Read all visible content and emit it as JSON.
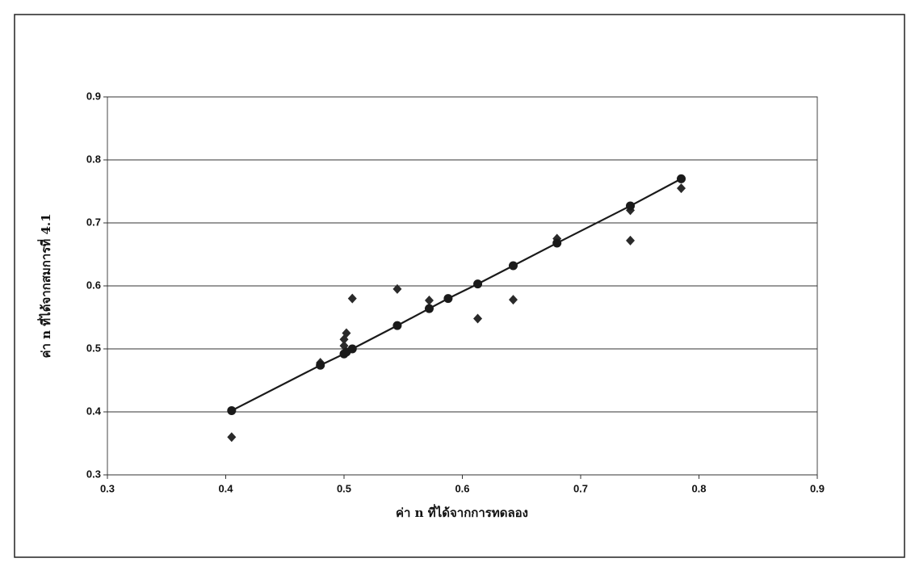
{
  "chart_data": {
    "type": "scatter",
    "x_label": "ค่า n ที่ได้จากการทดลอง",
    "y_label": "ค่า n ที่ได้จากสมการที่ 4.1",
    "xlim": [
      0.3,
      0.9
    ],
    "ylim": [
      0.3,
      0.9
    ],
    "xticks": [
      0.3,
      0.4,
      0.5,
      0.6,
      0.7,
      0.8,
      0.9
    ],
    "yticks": [
      0.3,
      0.4,
      0.5,
      0.6,
      0.7,
      0.8,
      0.9
    ],
    "grid": true,
    "series": [
      {
        "marker": "diamond",
        "color": "#2a2a2a",
        "line": false,
        "x": [
          0.405,
          0.48,
          0.5,
          0.5,
          0.502,
          0.507,
          0.545,
          0.572,
          0.613,
          0.643,
          0.68,
          0.742,
          0.742,
          0.785
        ],
        "values": [
          0.36,
          0.478,
          0.505,
          0.515,
          0.525,
          0.58,
          0.595,
          0.577,
          0.548,
          0.578,
          0.675,
          0.672,
          0.72,
          0.755
        ]
      },
      {
        "marker": "circle",
        "color": "#1a1a1a",
        "line": true,
        "x": [
          0.405,
          0.48,
          0.5,
          0.502,
          0.507,
          0.545,
          0.572,
          0.588,
          0.613,
          0.643,
          0.68,
          0.742,
          0.785
        ],
        "values": [
          0.402,
          0.474,
          0.492,
          0.495,
          0.5,
          0.537,
          0.564,
          0.58,
          0.603,
          0.632,
          0.668,
          0.727,
          0.77
        ]
      }
    ]
  }
}
